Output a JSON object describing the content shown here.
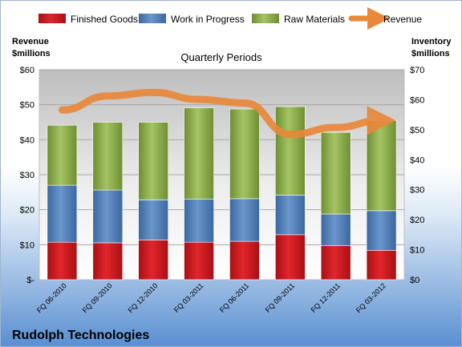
{
  "company": "Rudolph Technologies",
  "chart_data": {
    "type": "bar",
    "title": "Quarterly Periods",
    "ylabel_left": "Revenue $millions",
    "ylabel_right": "Inventory $millions",
    "ylabel_left_lines": [
      "Revenue",
      "$millions"
    ],
    "ylabel_right_lines": [
      "Inventory",
      "$millions"
    ],
    "ylim_left": [
      0,
      60
    ],
    "ylim_right": [
      0,
      70
    ],
    "left_ticks": [
      "$-",
      "$10",
      "$20",
      "$30",
      "$40",
      "$50",
      "$60"
    ],
    "right_ticks": [
      "$0",
      "$10",
      "$20",
      "$30",
      "$40",
      "$50",
      "$60",
      "$70"
    ],
    "categories": [
      "FQ 06-2010",
      "FQ 09-2010",
      "FQ 12-2010",
      "FQ 03-2011",
      "FQ 06-2011",
      "FQ 09-2011",
      "FQ 12-2011",
      "FQ 03-2012"
    ],
    "legend_position": "top",
    "stacked": true,
    "series": [
      {
        "name": "Finished Goods",
        "axis": "right",
        "color": "#c8161d",
        "values": [
          12.5,
          12.3,
          13.2,
          12.5,
          12.8,
          15.0,
          11.3,
          9.8
        ]
      },
      {
        "name": "Work in Progress",
        "axis": "right",
        "color": "#4f81bd",
        "values": [
          19.0,
          17.6,
          13.4,
          14.4,
          14.2,
          13.2,
          10.6,
          13.2
        ]
      },
      {
        "name": "Raw Materials",
        "axis": "right",
        "color": "#9bbb59",
        "values": [
          20.0,
          22.6,
          25.9,
          30.4,
          29.9,
          29.5,
          27.2,
          30.0
        ]
      },
      {
        "name": "Revenue",
        "axis": "left",
        "type": "line",
        "color": "#e9883a",
        "values": [
          48.5,
          52.5,
          53.5,
          51.5,
          50.5,
          41.5,
          43.5,
          45.5
        ]
      }
    ]
  }
}
